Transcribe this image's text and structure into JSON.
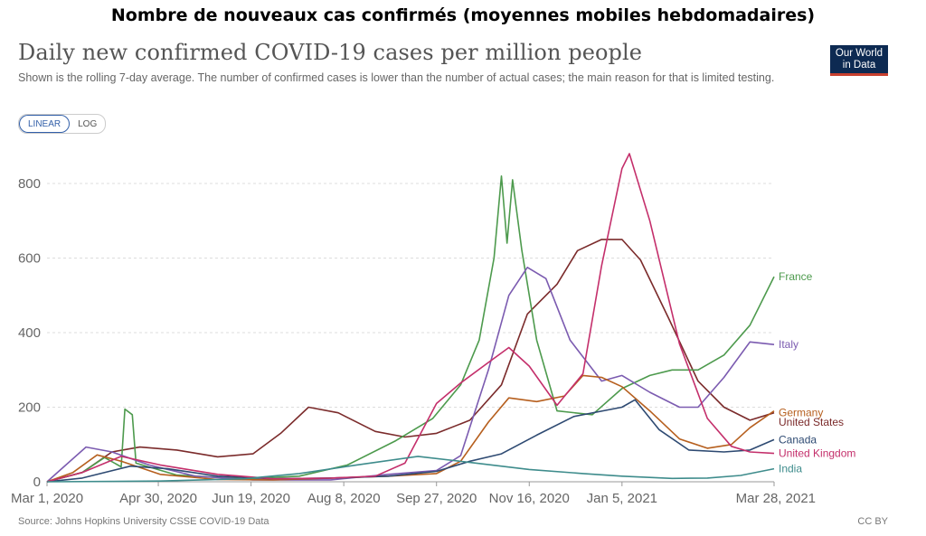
{
  "banner": "Nombre de nouveaux cas confirmés (moyennes mobiles hebdomadaires)",
  "header": {
    "title": "Daily new confirmed COVID-19 cases per million people",
    "subtitle": "Shown is the rolling 7-day average. The number of confirmed cases is lower than the number of actual cases; the main reason for that is limited testing.",
    "logo_line1": "Our World",
    "logo_line2": "in Data"
  },
  "controls": {
    "linear_label": "LINEAR",
    "log_label": "LOG",
    "selected": "linear"
  },
  "footer": {
    "source": "Source: Johns Hopkins University CSSE COVID-19 Data",
    "license": "CC BY"
  },
  "chart_data": {
    "type": "line",
    "title": "Daily new confirmed COVID-19 cases per million people",
    "ylim": [
      0,
      880
    ],
    "y_ticks": [
      0,
      200,
      400,
      600,
      800
    ],
    "x_range": [
      "2020-03-01",
      "2021-03-28"
    ],
    "x_ticks": [
      {
        "date": "2020-03-01",
        "label": "Mar 1, 2020"
      },
      {
        "date": "2020-04-30",
        "label": "Apr 30, 2020"
      },
      {
        "date": "2020-06-19",
        "label": "Jun 19, 2020"
      },
      {
        "date": "2020-08-08",
        "label": "Aug 8, 2020"
      },
      {
        "date": "2020-09-27",
        "label": "Sep 27, 2020"
      },
      {
        "date": "2020-11-16",
        "label": "Nov 16, 2020"
      },
      {
        "date": "2021-01-05",
        "label": "Jan 5, 2021"
      },
      {
        "date": "2021-03-28",
        "label": "Mar 28, 2021"
      }
    ],
    "grid": "horizontal-dashed",
    "legend": "right-inline-labels",
    "series": [
      {
        "name": "United States",
        "color": "#7b2b2b",
        "label_y": 160,
        "points": [
          [
            "2020-03-01",
            0
          ],
          [
            "2020-03-20",
            25
          ],
          [
            "2020-04-05",
            80
          ],
          [
            "2020-04-20",
            93
          ],
          [
            "2020-05-10",
            85
          ],
          [
            "2020-06-01",
            67
          ],
          [
            "2020-06-20",
            75
          ],
          [
            "2020-07-05",
            130
          ],
          [
            "2020-07-20",
            200
          ],
          [
            "2020-08-05",
            185
          ],
          [
            "2020-08-25",
            135
          ],
          [
            "2020-09-10",
            120
          ],
          [
            "2020-09-27",
            130
          ],
          [
            "2020-10-15",
            165
          ],
          [
            "2020-11-01",
            260
          ],
          [
            "2020-11-15",
            450
          ],
          [
            "2020-12-01",
            530
          ],
          [
            "2020-12-12",
            620
          ],
          [
            "2020-12-25",
            650
          ],
          [
            "2021-01-05",
            650
          ],
          [
            "2021-01-15",
            595
          ],
          [
            "2021-01-30",
            440
          ],
          [
            "2021-02-15",
            270
          ],
          [
            "2021-03-01",
            200
          ],
          [
            "2021-03-15",
            165
          ],
          [
            "2021-03-28",
            185
          ]
        ]
      },
      {
        "name": "France",
        "color": "#4d9a4d",
        "label_y": 550,
        "points": [
          [
            "2020-03-01",
            0
          ],
          [
            "2020-03-20",
            25
          ],
          [
            "2020-04-01",
            65
          ],
          [
            "2020-04-10",
            40
          ],
          [
            "2020-04-12",
            195
          ],
          [
            "2020-04-16",
            180
          ],
          [
            "2020-04-18",
            50
          ],
          [
            "2020-05-10",
            18
          ],
          [
            "2020-06-15",
            8
          ],
          [
            "2020-07-15",
            15
          ],
          [
            "2020-08-10",
            45
          ],
          [
            "2020-09-05",
            110
          ],
          [
            "2020-09-25",
            170
          ],
          [
            "2020-10-10",
            260
          ],
          [
            "2020-10-20",
            380
          ],
          [
            "2020-10-28",
            600
          ],
          [
            "2020-11-01",
            820
          ],
          [
            "2020-11-04",
            640
          ],
          [
            "2020-11-07",
            810
          ],
          [
            "2020-11-12",
            620
          ],
          [
            "2020-11-20",
            380
          ],
          [
            "2020-12-01",
            190
          ],
          [
            "2020-12-20",
            180
          ],
          [
            "2021-01-05",
            250
          ],
          [
            "2021-01-20",
            285
          ],
          [
            "2021-02-01",
            300
          ],
          [
            "2021-02-15",
            300
          ],
          [
            "2021-03-01",
            340
          ],
          [
            "2021-03-15",
            420
          ],
          [
            "2021-03-28",
            550
          ]
        ]
      },
      {
        "name": "Italy",
        "color": "#7b5bb0",
        "label_y": 368,
        "points": [
          [
            "2020-03-01",
            0
          ],
          [
            "2020-03-10",
            40
          ],
          [
            "2020-03-22",
            93
          ],
          [
            "2020-04-05",
            80
          ],
          [
            "2020-04-25",
            45
          ],
          [
            "2020-05-20",
            15
          ],
          [
            "2020-06-20",
            5
          ],
          [
            "2020-08-01",
            5
          ],
          [
            "2020-09-01",
            20
          ],
          [
            "2020-09-27",
            30
          ],
          [
            "2020-10-10",
            70
          ],
          [
            "2020-10-25",
            300
          ],
          [
            "2020-11-05",
            500
          ],
          [
            "2020-11-15",
            575
          ],
          [
            "2020-11-25",
            545
          ],
          [
            "2020-12-08",
            380
          ],
          [
            "2020-12-25",
            270
          ],
          [
            "2021-01-05",
            285
          ],
          [
            "2021-01-20",
            240
          ],
          [
            "2021-02-05",
            200
          ],
          [
            "2021-02-15",
            200
          ],
          [
            "2021-03-01",
            280
          ],
          [
            "2021-03-15",
            375
          ],
          [
            "2021-03-28",
            368
          ]
        ]
      },
      {
        "name": "Germany",
        "color": "#b65f1e",
        "label_y": 185,
        "points": [
          [
            "2020-03-01",
            0
          ],
          [
            "2020-03-15",
            25
          ],
          [
            "2020-03-28",
            72
          ],
          [
            "2020-04-10",
            55
          ],
          [
            "2020-05-01",
            20
          ],
          [
            "2020-06-01",
            6
          ],
          [
            "2020-07-01",
            5
          ],
          [
            "2020-08-01",
            10
          ],
          [
            "2020-09-01",
            15
          ],
          [
            "2020-09-27",
            22
          ],
          [
            "2020-10-10",
            55
          ],
          [
            "2020-10-25",
            160
          ],
          [
            "2020-11-05",
            225
          ],
          [
            "2020-11-20",
            215
          ],
          [
            "2020-12-05",
            230
          ],
          [
            "2020-12-15",
            285
          ],
          [
            "2020-12-25",
            280
          ],
          [
            "2021-01-05",
            255
          ],
          [
            "2021-01-20",
            190
          ],
          [
            "2021-02-05",
            115
          ],
          [
            "2021-02-20",
            90
          ],
          [
            "2021-03-05",
            100
          ],
          [
            "2021-03-15",
            145
          ],
          [
            "2021-03-28",
            190
          ]
        ]
      },
      {
        "name": "Canada",
        "color": "#2e4a72",
        "label_y": 113,
        "points": [
          [
            "2020-03-01",
            0
          ],
          [
            "2020-03-20",
            10
          ],
          [
            "2020-04-15",
            42
          ],
          [
            "2020-05-05",
            35
          ],
          [
            "2020-06-01",
            15
          ],
          [
            "2020-07-01",
            8
          ],
          [
            "2020-08-01",
            10
          ],
          [
            "2020-09-01",
            15
          ],
          [
            "2020-09-27",
            28
          ],
          [
            "2020-10-15",
            55
          ],
          [
            "2020-11-01",
            75
          ],
          [
            "2020-11-20",
            125
          ],
          [
            "2020-12-10",
            175
          ],
          [
            "2021-01-05",
            200
          ],
          [
            "2021-01-12",
            220
          ],
          [
            "2021-01-25",
            140
          ],
          [
            "2021-02-10",
            85
          ],
          [
            "2021-03-01",
            80
          ],
          [
            "2021-03-15",
            85
          ],
          [
            "2021-03-28",
            113
          ]
        ]
      },
      {
        "name": "United Kingdom",
        "color": "#c42f6b",
        "label_y": 76,
        "points": [
          [
            "2020-03-01",
            0
          ],
          [
            "2020-03-20",
            25
          ],
          [
            "2020-04-10",
            68
          ],
          [
            "2020-05-01",
            45
          ],
          [
            "2020-06-01",
            20
          ],
          [
            "2020-07-01",
            8
          ],
          [
            "2020-08-01",
            10
          ],
          [
            "2020-08-25",
            15
          ],
          [
            "2020-09-10",
            50
          ],
          [
            "2020-09-27",
            210
          ],
          [
            "2020-10-10",
            265
          ],
          [
            "2020-10-25",
            320
          ],
          [
            "2020-11-05",
            360
          ],
          [
            "2020-11-16",
            310
          ],
          [
            "2020-12-01",
            205
          ],
          [
            "2020-12-15",
            290
          ],
          [
            "2020-12-25",
            580
          ],
          [
            "2021-01-05",
            840
          ],
          [
            "2021-01-09",
            880
          ],
          [
            "2021-01-20",
            700
          ],
          [
            "2021-02-05",
            370
          ],
          [
            "2021-02-20",
            170
          ],
          [
            "2021-03-05",
            95
          ],
          [
            "2021-03-15",
            80
          ],
          [
            "2021-03-28",
            76
          ]
        ]
      },
      {
        "name": "India",
        "color": "#3e8c8c",
        "label_y": 35,
        "points": [
          [
            "2020-03-01",
            0
          ],
          [
            "2020-05-01",
            2
          ],
          [
            "2020-06-15",
            8
          ],
          [
            "2020-07-15",
            22
          ],
          [
            "2020-08-15",
            45
          ],
          [
            "2020-09-17",
            68
          ],
          [
            "2020-10-15",
            52
          ],
          [
            "2020-11-16",
            33
          ],
          [
            "2020-12-15",
            22
          ],
          [
            "2021-01-05",
            15
          ],
          [
            "2021-02-01",
            9
          ],
          [
            "2021-02-20",
            10
          ],
          [
            "2021-03-10",
            17
          ],
          [
            "2021-03-28",
            35
          ]
        ]
      }
    ]
  }
}
